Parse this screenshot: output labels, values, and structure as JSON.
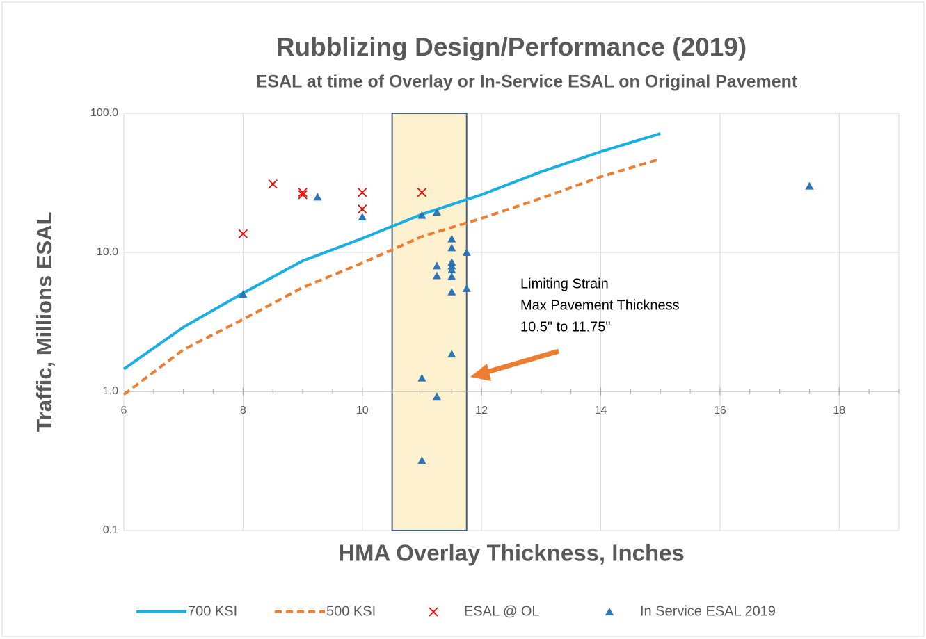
{
  "chart_data": {
    "type": "scatter",
    "title": "Rubblizing Design/Performance (2019)",
    "subtitle": "ESAL at time of Overlay or In-Service ESAL on Original Pavement",
    "x_label": "HMA Overlay Thickness, Inches",
    "y_label": "Traffic, Millions ESAL",
    "xlim": [
      6,
      19
    ],
    "xticks": [
      6,
      8,
      10,
      12,
      14,
      16,
      18
    ],
    "ylim": [
      0.1,
      100
    ],
    "yticks": [
      0.1,
      {
        "value": 1,
        "label": "1.0"
      },
      {
        "value": 10,
        "label": "10.0"
      },
      {
        "value": 100,
        "label": "100.0"
      }
    ],
    "y_log": true,
    "grid": true,
    "legend": "bottom",
    "band_x": [
      10.5,
      11.75
    ],
    "annotation": [
      "Limiting Strain",
      "Max Pavement Thickness",
      "10.5\" to 11.75\""
    ],
    "series": [
      {
        "name": "700 KSI",
        "type": "line",
        "color": "#19aee4",
        "dash": false,
        "x": [
          6,
          7,
          8,
          9,
          10,
          11,
          12,
          13,
          14,
          15
        ],
        "values": [
          1.45,
          2.9,
          5.1,
          8.7,
          12.6,
          18.8,
          26,
          38,
          53,
          71.6
        ]
      },
      {
        "name": "500 KSI",
        "type": "line",
        "color": "#ed7d31",
        "dash": true,
        "x": [
          6,
          7,
          8,
          9,
          10,
          11,
          12,
          13,
          14,
          15
        ],
        "values": [
          0.95,
          2.0,
          3.3,
          5.6,
          8.4,
          13,
          17.6,
          24.5,
          35,
          47
        ]
      },
      {
        "name": "ESAL @ OL",
        "type": "cross",
        "color": "#ff0000",
        "x": [
          8,
          8.5,
          9,
          9,
          10,
          10,
          11
        ],
        "values": [
          13.6,
          31,
          27,
          26,
          27,
          20.5,
          27
        ]
      },
      {
        "name": "In Service ESAL 2019",
        "type": "triangle",
        "color": "#2e75b6",
        "x": [
          8,
          9.25,
          10,
          11,
          11.25,
          11.5,
          11.5,
          11.75,
          11.25,
          11.5,
          11.5,
          11.5,
          11.25,
          11.5,
          11.75,
          11.5,
          11.5,
          11,
          11.25,
          11,
          17.5
        ],
        "values": [
          5,
          25,
          18,
          18.5,
          19.5,
          12.5,
          10.8,
          10,
          8,
          8.5,
          8,
          7.5,
          6.8,
          6.7,
          5.5,
          5.2,
          1.86,
          1.25,
          0.92,
          0.32,
          30
        ]
      }
    ]
  }
}
